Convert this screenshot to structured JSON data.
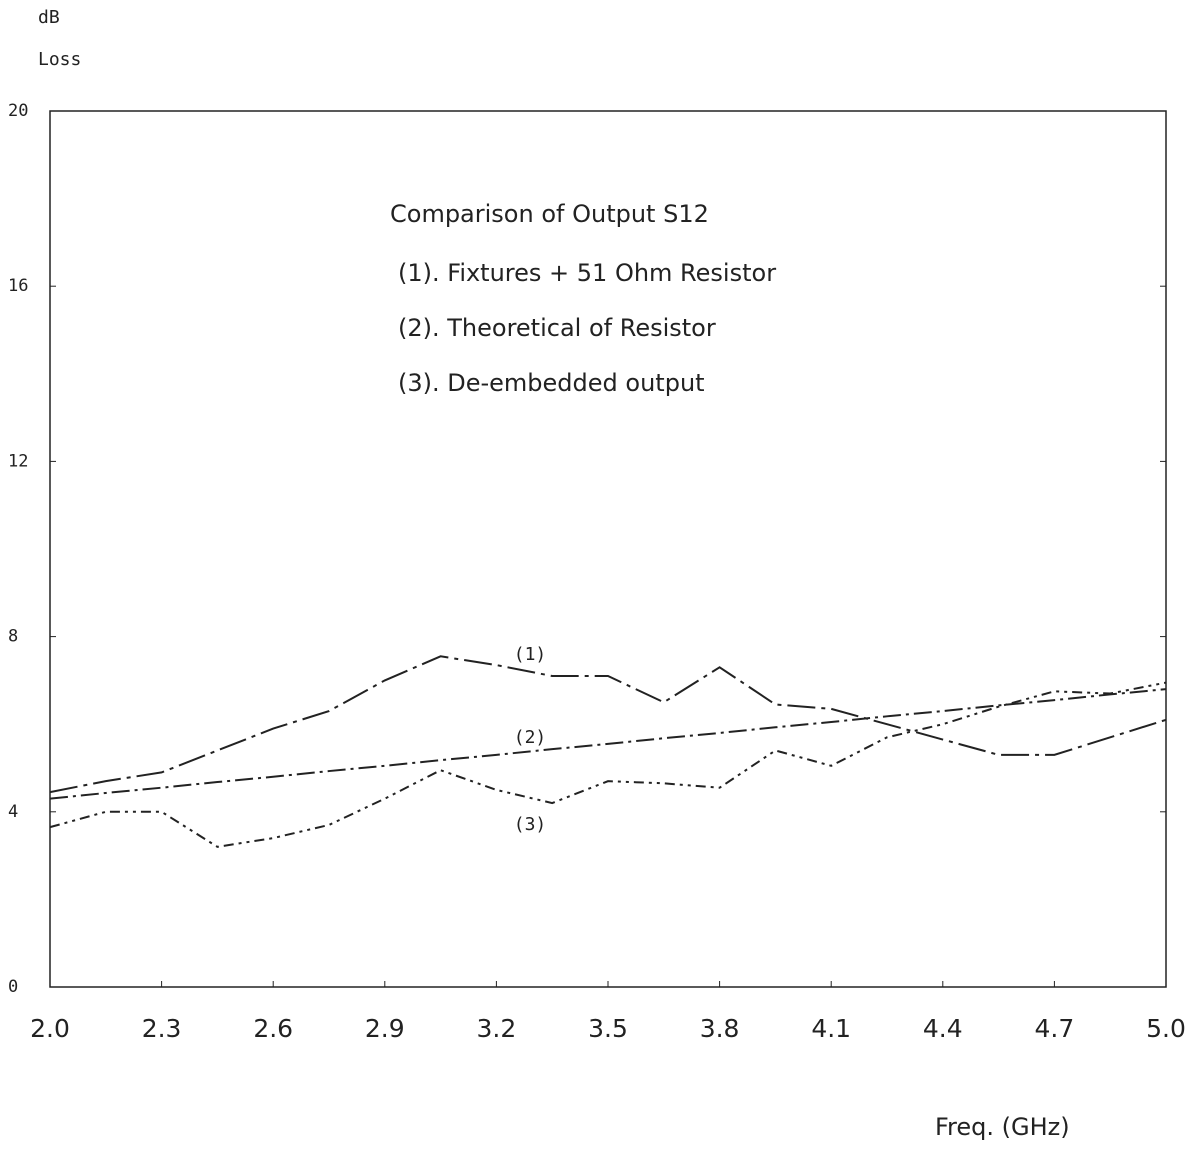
{
  "chart_data": {
    "type": "line",
    "title": "Comparison of Output S12",
    "y_label_lines": [
      "dB",
      "Loss"
    ],
    "x_label": "Freq. (GHz)",
    "legend_lines": [
      "(1). Fixtures + 51 Ohm Resistor",
      "(2). Theoretical of Resistor",
      "(3). De-embedded output"
    ],
    "annotations": [
      "(1)",
      "(2)",
      "(3)"
    ],
    "x": [
      2.0,
      2.15,
      2.3,
      2.45,
      2.6,
      2.75,
      2.9,
      3.05,
      3.2,
      3.35,
      3.5,
      3.65,
      3.8,
      3.95,
      4.1,
      4.25,
      4.4,
      4.55,
      4.7,
      4.85,
      5.0
    ],
    "series": [
      {
        "name": "(1)",
        "color": "#222",
        "values": [
          4.45,
          4.7,
          4.9,
          5.4,
          5.9,
          6.3,
          7.0,
          7.55,
          7.35,
          7.1,
          7.1,
          6.5,
          7.3,
          6.45,
          6.35,
          6.0,
          5.65,
          5.3,
          5.3,
          5.7,
          6.1
        ]
      },
      {
        "name": "(2)",
        "color": "#222",
        "values": [
          4.3,
          4.43,
          4.55,
          4.68,
          4.8,
          4.93,
          5.05,
          5.18,
          5.3,
          5.43,
          5.55,
          5.68,
          5.8,
          5.93,
          6.05,
          6.18,
          6.3,
          6.43,
          6.55,
          6.68,
          6.8
        ]
      },
      {
        "name": "(3)",
        "color": "#222",
        "values": [
          3.65,
          4.0,
          4.0,
          3.2,
          3.4,
          3.7,
          4.3,
          4.95,
          4.5,
          4.2,
          4.7,
          4.65,
          4.55,
          5.4,
          5.05,
          5.7,
          6.0,
          6.4,
          6.75,
          6.7,
          6.95
        ]
      }
    ],
    "xlim": [
      2.0,
      5.0
    ],
    "xticks": [
      {
        "value": 2,
        "label": "2.0"
      },
      2.3,
      2.6,
      2.9,
      3.2,
      3.5,
      3.8,
      4.1,
      4.4,
      4.7,
      {
        "value": 5,
        "label": "5.0"
      }
    ],
    "ylim": [
      0,
      20
    ],
    "yticks": [
      0,
      4,
      8,
      12,
      16,
      20
    ]
  }
}
